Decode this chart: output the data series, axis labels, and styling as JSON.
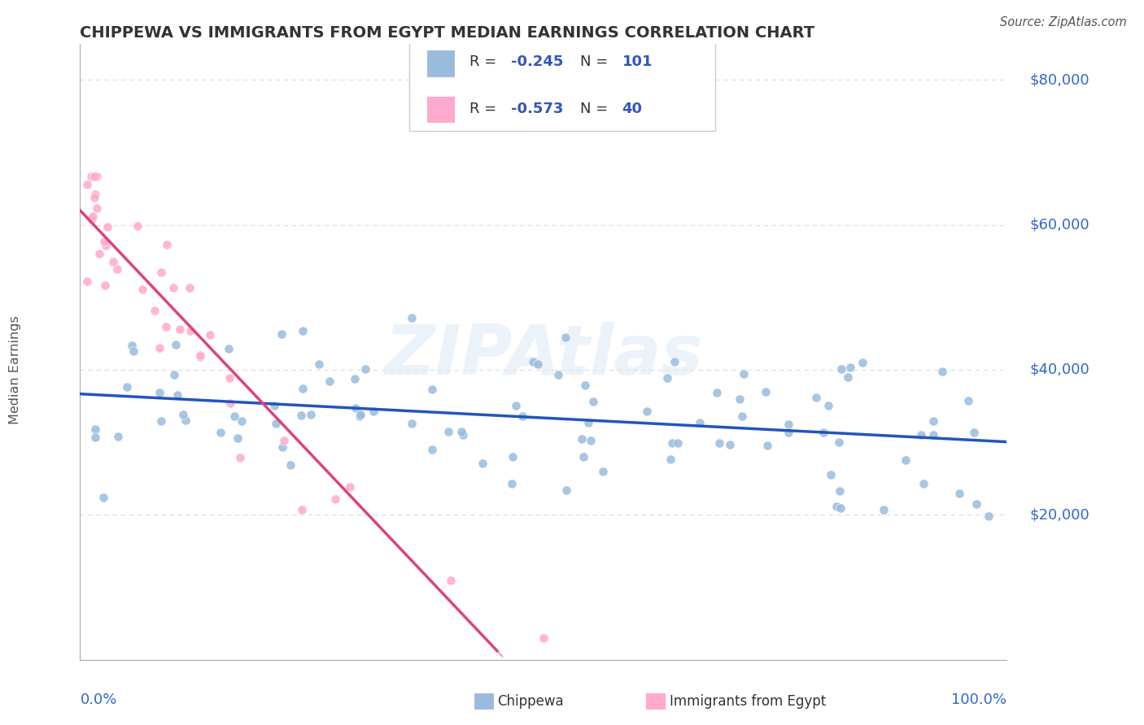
{
  "title": "CHIPPEWA VS IMMIGRANTS FROM EGYPT MEDIAN EARNINGS CORRELATION CHART",
  "source": "Source: ZipAtlas.com",
  "ylabel": "Median Earnings",
  "x_range": [
    0,
    100
  ],
  "y_range": [
    0,
    85000
  ],
  "chippewa_color": "#99bbdd",
  "egypt_color": "#ffaacc",
  "chippewa_line_color": "#2255bb",
  "egypt_line_color": "#dd4477",
  "legend_r1": "R = -0.245",
  "legend_n1": "N = 101",
  "legend_r2": "R = -0.573",
  "legend_n2": "N = 40",
  "legend_text_color": "#3355bb",
  "watermark": "ZIPAtlas",
  "title_color": "#333333",
  "axis_label_color": "#3366cc",
  "grid_color": "#dddddd",
  "spine_color": "#aaaaaa",
  "chippewa_n": 101,
  "egypt_n": 40,
  "seed": 99
}
